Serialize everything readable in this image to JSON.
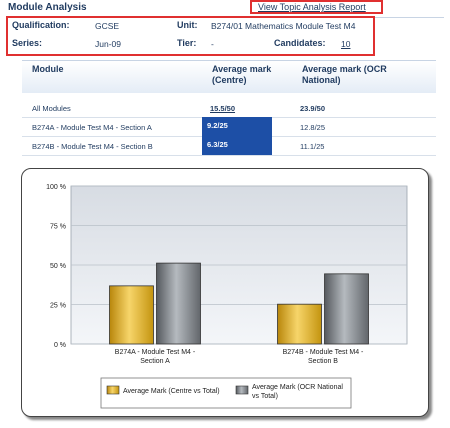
{
  "header": {
    "title": "Module Analysis",
    "report_link": "View Topic Analysis Report"
  },
  "meta": {
    "qualification_label": "Qualification:",
    "qualification_value": "GCSE",
    "unit_label": "Unit:",
    "unit_value": "B274/01 Mathematics Module Test M4",
    "series_label": "Series:",
    "series_value": "Jun-09",
    "tier_label": "Tier:",
    "tier_value": "-",
    "candidates_label": "Candidates:",
    "candidates_value": "10"
  },
  "table": {
    "headers": {
      "module": "Module",
      "centre": "Average mark (Centre)",
      "national": "Average mark (OCR National)"
    },
    "rows": [
      {
        "module": "All Modules",
        "centre": "15.5/50",
        "national": "23.9/50"
      },
      {
        "module": "B274A - Module Test M4 - Section A",
        "centre": "9.2/25",
        "national": "12.8/25"
      },
      {
        "module": "B274B - Module Test M4 - Section B",
        "centre": "6.3/25",
        "national": "11.1/25"
      }
    ],
    "highlight_color": "#1d4fa6"
  },
  "chart_data": {
    "type": "bar",
    "categories": [
      "B274A - Module Test M4 - Section A",
      "B274B - Module Test M4 - Section B"
    ],
    "category_lines": [
      [
        "B274A - Module Test M4 -",
        "Section A"
      ],
      [
        "B274B - Module Test M4 -",
        "Section B"
      ]
    ],
    "series": [
      {
        "name": "Average Mark (Centre vs Total)",
        "values": [
          36.8,
          25.2
        ],
        "color": "#e2b42c"
      },
      {
        "name": "Average Mark (OCR National vs Total)",
        "values": [
          51.2,
          44.4
        ],
        "color": "#8a8f95"
      }
    ],
    "legend_lines": [
      [
        "Average Mark (Centre vs Total)"
      ],
      [
        "Average Mark (OCR National",
        "vs Total)"
      ]
    ],
    "yticks": [
      "0 %",
      "25 %",
      "50 %",
      "75 %",
      "100 %"
    ],
    "ylim": [
      0,
      100
    ],
    "grid": true,
    "legend_position": "bottom"
  }
}
